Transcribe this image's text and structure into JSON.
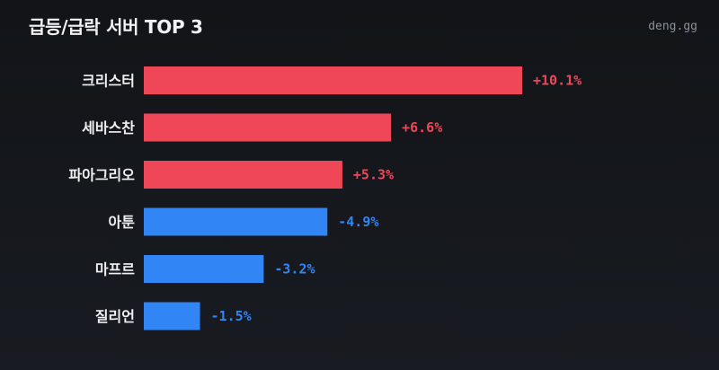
{
  "header": {
    "title": "급등/급락 서버 TOP 3",
    "brand": "deng.gg"
  },
  "colors": {
    "up": "#ef4757",
    "down": "#3185f4"
  },
  "chart_data": {
    "type": "bar",
    "orientation": "horizontal",
    "title": "급등/급락 서버 TOP 3",
    "categories": [
      "크리스터",
      "세바스찬",
      "파아그리오",
      "아툰",
      "마프르",
      "질리언"
    ],
    "values": [
      10.1,
      6.6,
      5.3,
      -4.9,
      -3.2,
      -1.5
    ],
    "value_labels": [
      "+10.1%",
      "+6.6%",
      "+5.3%",
      "-4.9%",
      "-3.2%",
      "-1.5%"
    ],
    "bar_magnitude": "absolute",
    "xlim": [
      0,
      10.1
    ],
    "grid": false,
    "legend": "none"
  }
}
